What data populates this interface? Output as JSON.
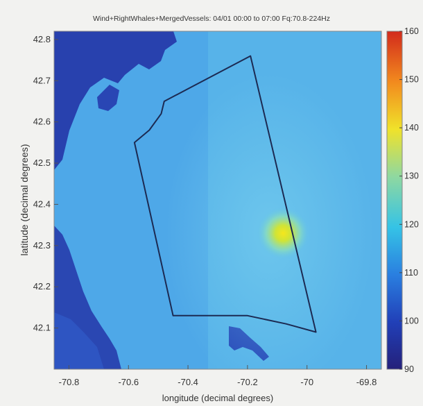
{
  "chart_data": {
    "type": "heatmap",
    "title": "Wind+RightWhales+MergedVessels: 04/01 00:00 to 07:00 Fq:70.8-224Hz",
    "xlabel": "longitude (decimal degrees)",
    "ylabel": "latitude (decimal degrees)",
    "xlim": [
      -70.85,
      -69.75
    ],
    "ylim": [
      42.0,
      42.82
    ],
    "x_ticks": [
      -70.8,
      -70.6,
      -70.4,
      -70.2,
      -70.0,
      -69.8
    ],
    "x_tick_labels": [
      "-70.8",
      "-70.6",
      "-70.4",
      "-70.2",
      "-70",
      "-69.8"
    ],
    "y_ticks": [
      42.1,
      42.2,
      42.3,
      42.4,
      42.5,
      42.6,
      42.7,
      42.8
    ],
    "y_tick_labels": [
      "42.1",
      "42.2",
      "42.3",
      "42.4",
      "42.5",
      "42.6",
      "42.7",
      "42.8"
    ],
    "colorbar": {
      "min": 90,
      "max": 160,
      "ticks": [
        90,
        100,
        110,
        120,
        130,
        140,
        150,
        160
      ],
      "tick_labels": [
        "90",
        "100",
        "110",
        "120",
        "130",
        "140",
        "150",
        "160"
      ],
      "colormap": "jet"
    },
    "hotspot": {
      "lon": -70.08,
      "lat": 42.33,
      "peak_value": 131
    },
    "background_level": 110,
    "boundary_polygon": [
      [
        -70.19,
        42.76
      ],
      [
        -70.48,
        42.65
      ],
      [
        -70.49,
        42.62
      ],
      [
        -70.53,
        42.58
      ],
      [
        -70.58,
        42.55
      ],
      [
        -70.45,
        42.13
      ],
      [
        -70.2,
        42.13
      ],
      [
        -70.07,
        42.11
      ],
      [
        -69.97,
        42.09
      ],
      [
        -70.19,
        42.76
      ]
    ],
    "grid": false,
    "legend": "colorbar-right"
  }
}
